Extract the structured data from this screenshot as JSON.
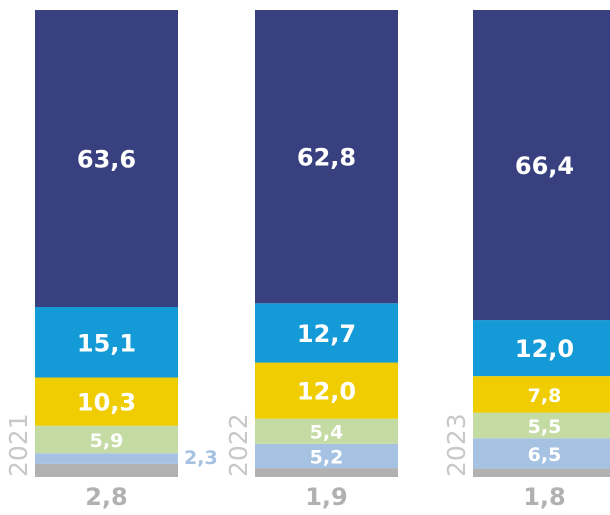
{
  "chart_data": {
    "type": "stacked-bar",
    "categories": [
      "2021",
      "2022",
      "2023"
    ],
    "series": [
      {
        "color": "#b1b1b1",
        "values": [
          2.8,
          1.9,
          1.8
        ],
        "value_labels": [
          "2,8",
          "1,9",
          "1,8"
        ]
      },
      {
        "color": "#a5c2e2",
        "values": [
          2.3,
          5.2,
          6.5
        ],
        "value_labels": [
          "2,3",
          "5,2",
          "6,5"
        ]
      },
      {
        "color": "#c5dba4",
        "values": [
          5.9,
          5.4,
          5.5
        ],
        "value_labels": [
          "5,9",
          "5,4",
          "5,5"
        ]
      },
      {
        "color": "#f0cd00",
        "values": [
          10.3,
          12.0,
          7.8
        ],
        "value_labels": [
          "10,3",
          "12,0",
          "7,8"
        ]
      },
      {
        "color": "#159ad8",
        "values": [
          15.1,
          12.7,
          12.0
        ],
        "value_labels": [
          "15,1",
          "12,7",
          "12,0"
        ]
      },
      {
        "color": "#38407f",
        "values": [
          63.6,
          62.8,
          66.4
        ],
        "value_labels": [
          "63,6",
          "62,8",
          "66,4"
        ]
      }
    ]
  }
}
